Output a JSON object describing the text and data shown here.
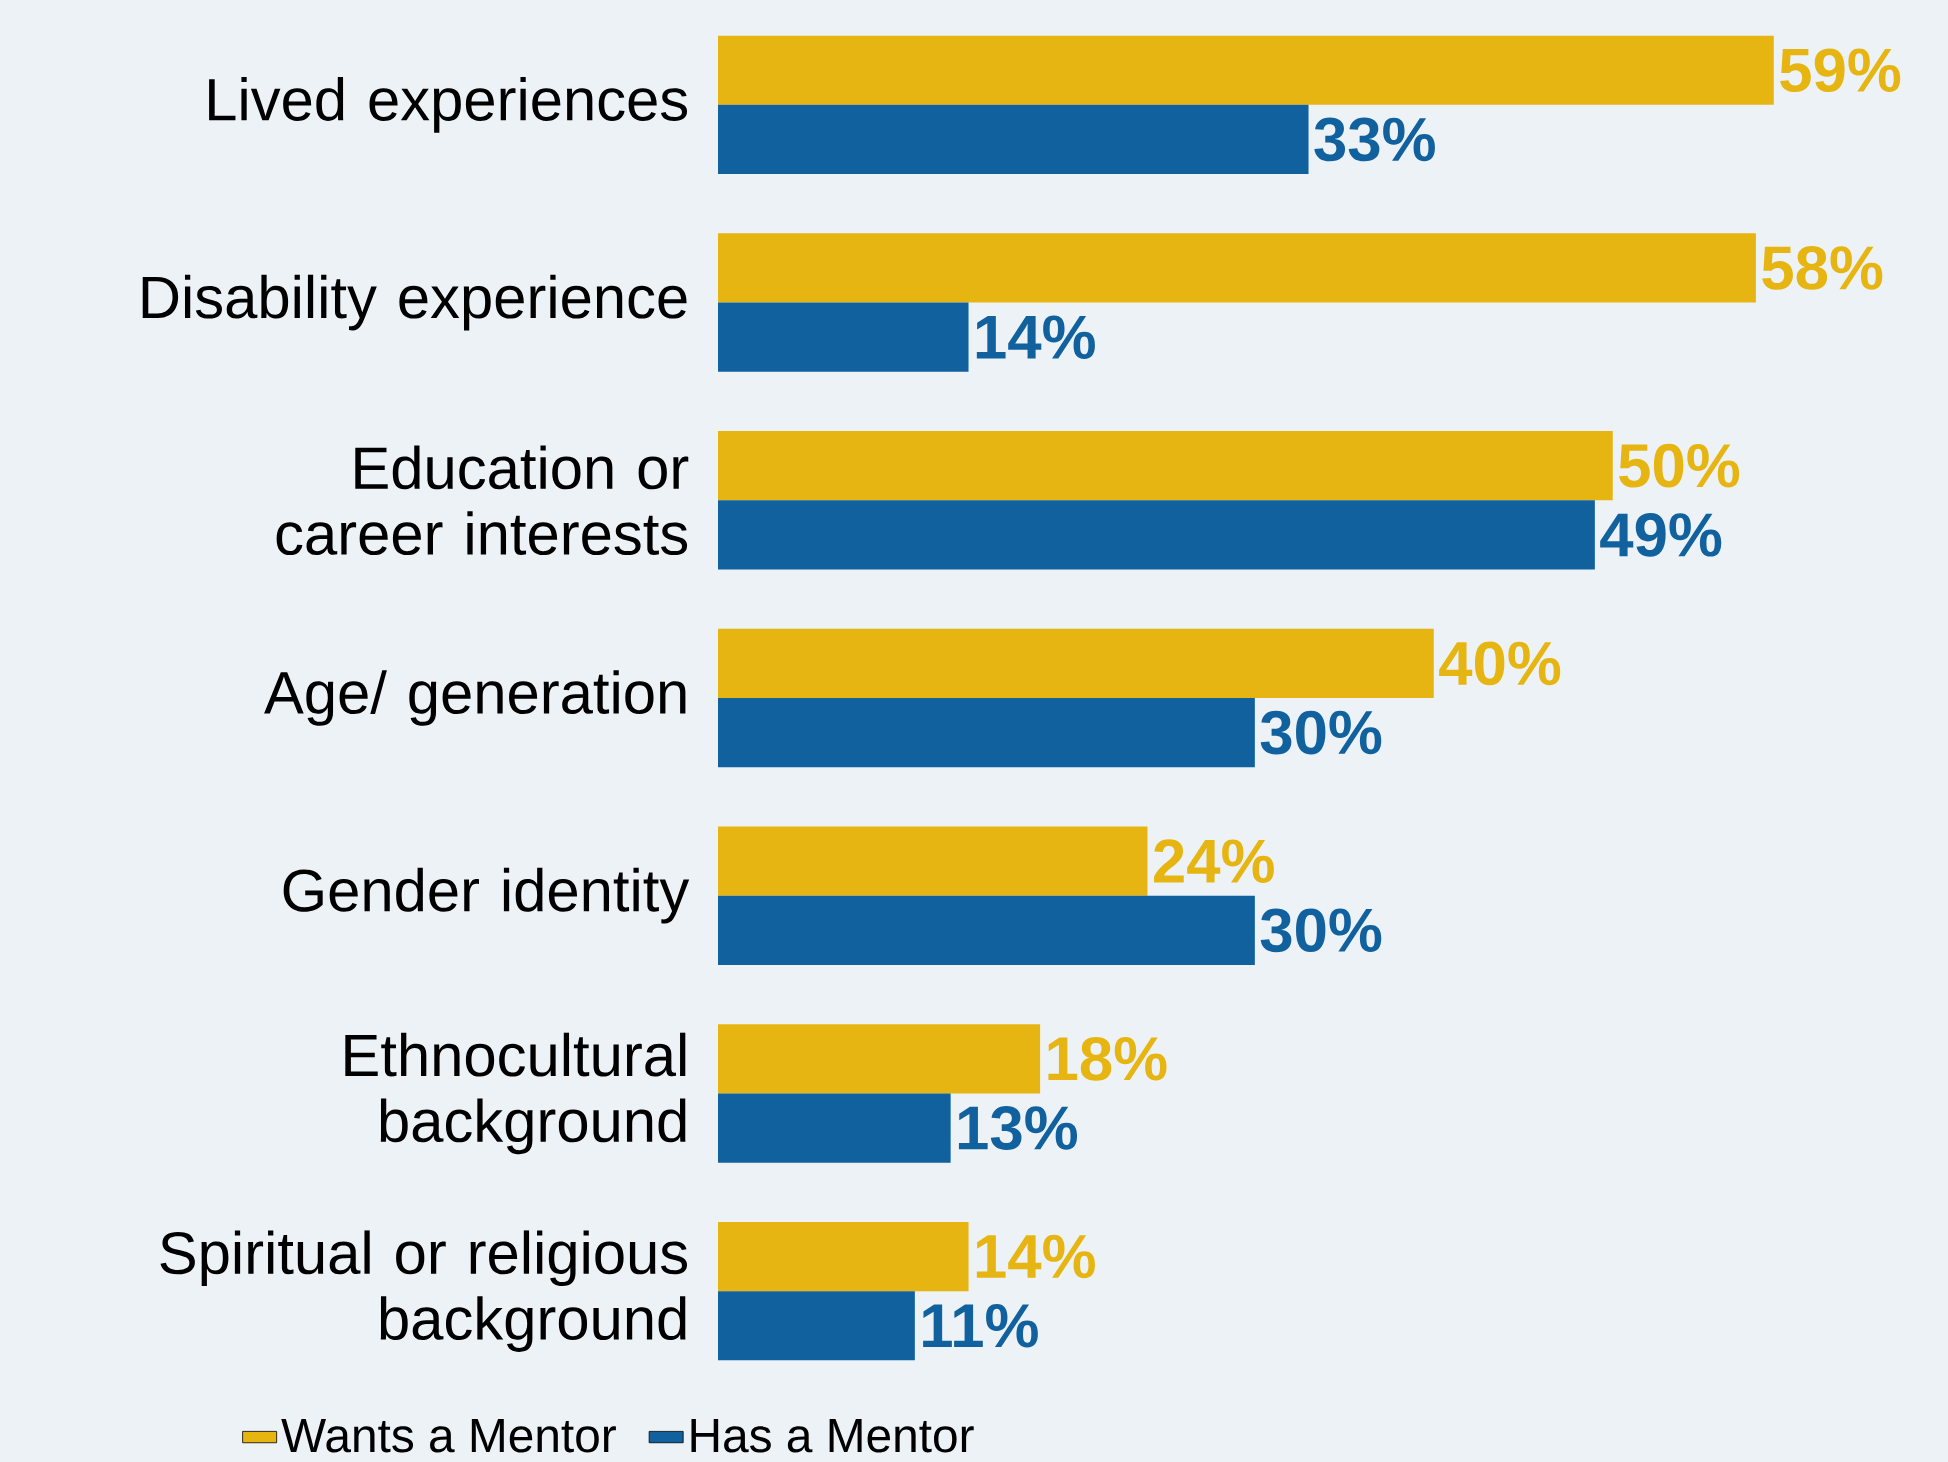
{
  "chart_data": {
    "type": "bar",
    "orientation": "horizontal",
    "categories": [
      "Lived experiences",
      "Disability experience",
      "Education or career interests",
      "Age/ generation",
      "Gender identity",
      "Ethnocultural background",
      "Spiritual or religious background"
    ],
    "series": [
      {
        "name": "Wants a Mentor",
        "color": "#e6b511",
        "values": [
          59,
          58,
          50,
          40,
          24,
          18,
          14
        ],
        "value_labels": [
          "59%",
          "58%",
          "50%",
          "40%",
          "24%",
          "18%",
          "14%"
        ]
      },
      {
        "name": "Has a Mentor",
        "color": "#11619e",
        "values": [
          33,
          14,
          49,
          30,
          30,
          13,
          11
        ],
        "value_labels": [
          "33%",
          "14%",
          "49%",
          "30%",
          "30%",
          "13%",
          "11%"
        ]
      }
    ],
    "legend": "bottom left"
  }
}
